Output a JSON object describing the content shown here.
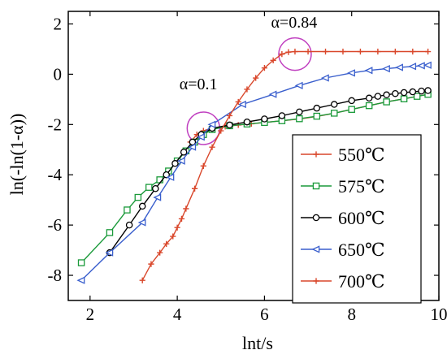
{
  "chart_data": {
    "type": "line",
    "title": "",
    "xlabel": "lnt/s",
    "ylabel": "ln(-ln(1-α))",
    "xlim": [
      1.5,
      10
    ],
    "ylim": [
      -9,
      2.5
    ],
    "xticks": [
      "2",
      "4",
      "6",
      "8",
      "10"
    ],
    "yticks": [
      "2",
      "0",
      "-2",
      "-4",
      "-6",
      "-8"
    ],
    "grid": false,
    "legend_position": "bottom-right",
    "series": [
      {
        "name": "550℃",
        "color": "#d9472b",
        "marker": "plus",
        "x": [
          4.3,
          4.45,
          4.6,
          4.8,
          5.1,
          5.4,
          5.7,
          6.0,
          6.4,
          6.8,
          7.2,
          7.6,
          8.0,
          8.4,
          8.8,
          9.2,
          9.5,
          9.75
        ],
        "y": [
          -2.7,
          -2.4,
          -2.25,
          -2.15,
          -2.08,
          -2.02,
          -1.97,
          -1.92,
          -1.85,
          -1.78,
          -1.68,
          -1.55,
          -1.4,
          -1.25,
          -1.1,
          -0.98,
          -0.88,
          -0.8
        ]
      },
      {
        "name": "575℃",
        "color": "#1a9a3a",
        "marker": "square",
        "x": [
          1.8,
          2.45,
          2.85,
          3.1,
          3.35,
          3.6,
          3.8,
          4.0,
          4.2,
          4.4,
          4.6,
          4.8,
          5.2,
          5.6,
          6.0,
          6.4,
          6.8,
          7.2,
          7.6,
          8.0,
          8.4,
          8.8,
          9.2,
          9.5,
          9.75
        ],
        "y": [
          -7.5,
          -6.3,
          -5.4,
          -4.9,
          -4.5,
          -4.2,
          -3.85,
          -3.45,
          -3.05,
          -2.7,
          -2.4,
          -2.2,
          -2.05,
          -1.98,
          -1.92,
          -1.85,
          -1.77,
          -1.67,
          -1.55,
          -1.4,
          -1.25,
          -1.1,
          -0.98,
          -0.88,
          -0.8
        ]
      },
      {
        "name": "600℃",
        "color": "#000000",
        "marker": "circle",
        "x": [
          2.45,
          2.9,
          3.2,
          3.5,
          3.75,
          3.95,
          4.15,
          4.35,
          4.55,
          4.8,
          5.2,
          5.6,
          6.0,
          6.4,
          6.8,
          7.2,
          7.6,
          8.0,
          8.4,
          8.6,
          8.8,
          9.0,
          9.2,
          9.4,
          9.6,
          9.75
        ],
        "y": [
          -7.1,
          -6.0,
          -5.25,
          -4.55,
          -4.0,
          -3.55,
          -3.1,
          -2.7,
          -2.4,
          -2.15,
          -2.02,
          -1.9,
          -1.78,
          -1.65,
          -1.5,
          -1.35,
          -1.2,
          -1.05,
          -0.95,
          -0.88,
          -0.82,
          -0.77,
          -0.73,
          -0.7,
          -0.67,
          -0.65
        ]
      },
      {
        "name": "650℃",
        "color": "#3a5fcd",
        "marker": "triangle-left",
        "x": [
          1.8,
          2.45,
          3.2,
          3.55,
          3.85,
          4.1,
          4.35,
          4.55,
          4.8,
          5.5,
          6.2,
          6.8,
          7.4,
          8.0,
          8.4,
          8.8,
          9.1,
          9.4,
          9.6,
          9.75
        ],
        "y": [
          -8.2,
          -7.1,
          -5.9,
          -4.9,
          -4.1,
          -3.45,
          -2.9,
          -2.5,
          -2.0,
          -1.2,
          -0.8,
          -0.45,
          -0.15,
          0.05,
          0.15,
          0.22,
          0.27,
          0.31,
          0.34,
          0.36
        ]
      },
      {
        "name": "700℃",
        "color": "#d9472b",
        "marker": "plus",
        "x": [
          3.2,
          3.4,
          3.6,
          3.75,
          3.9,
          4.0,
          4.1,
          4.2,
          4.4,
          4.6,
          4.8,
          5.0,
          5.2,
          5.4,
          5.6,
          5.8,
          6.0,
          6.2,
          6.4,
          6.55,
          6.7,
          7.0,
          7.4,
          7.8,
          8.2,
          8.6,
          9.0,
          9.4,
          9.75
        ],
        "y": [
          -8.2,
          -7.55,
          -7.1,
          -6.75,
          -6.45,
          -6.1,
          -5.75,
          -5.35,
          -4.55,
          -3.65,
          -2.9,
          -2.25,
          -1.65,
          -1.1,
          -0.6,
          -0.15,
          0.25,
          0.55,
          0.8,
          0.88,
          0.9,
          0.9,
          0.9,
          0.9,
          0.9,
          0.9,
          0.9,
          0.9,
          0.9
        ]
      }
    ],
    "annotations": [
      {
        "text": "α=0.1",
        "x": 4.05,
        "y": -0.6,
        "circle_x": 4.6,
        "circle_y": -2.15,
        "circle_color": "#c040c0"
      },
      {
        "text": "α=0.84",
        "x": 6.15,
        "y": 1.85,
        "circle_x": 6.7,
        "circle_y": 0.8,
        "circle_color": "#c040c0"
      }
    ]
  }
}
